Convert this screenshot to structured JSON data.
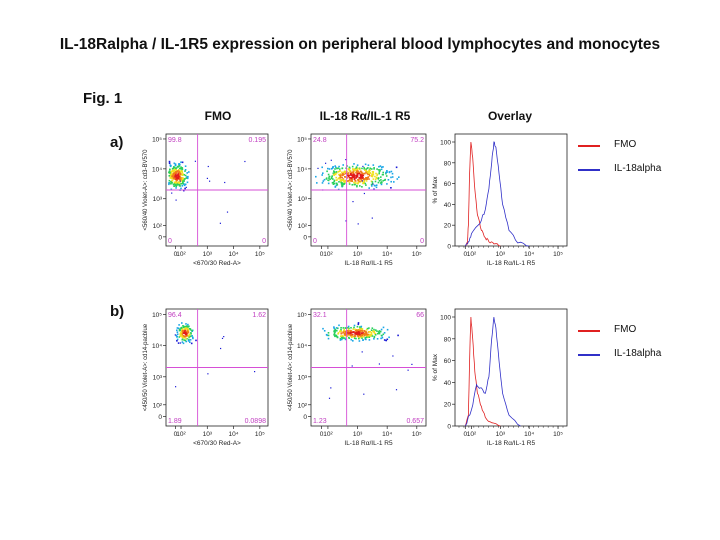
{
  "title": "IL-18Ralpha / IL-1R5 expression on peripheral blood lymphocytes and monocytes",
  "figure_label": "Fig. 1",
  "column_headers": [
    "FMO",
    "IL-18 Rα/IL-1 R5",
    "Overlay"
  ],
  "rows": [
    {
      "label": "a)",
      "dot_ylabel_fmo": "<560/40 Violet-A>: cd3-BV570",
      "dot_ylabel_il18": "<560/40 Violet-A>: cd3-BV570",
      "fmo": {
        "xlabel": "<670/30 Red-A>",
        "q_ul": "99.8",
        "q_ur": "0.195",
        "q_ll": "0",
        "q_lr": "0"
      },
      "il18": {
        "xlabel": "IL-18 Rα/IL-1 R5",
        "q_ul": "24.8",
        "q_ur": "75.2",
        "q_ll": "0",
        "q_lr": "0"
      },
      "hist": {
        "ylabel": "% of Max",
        "xlabel": "IL-18 Rα/IL-1 R5"
      },
      "legend": [
        "FMO",
        "IL-18alpha"
      ]
    },
    {
      "label": "b)",
      "dot_ylabel_fmo": "<450/50 Violet-A>: cd14-pacblue",
      "dot_ylabel_il18": "<450/50 Violet-A>: cd14-pacblue",
      "fmo": {
        "xlabel": "<670/30 Red-A>",
        "q_ul": "96.4",
        "q_ur": "1.62",
        "q_ll": "1.89",
        "q_lr": "0.0898"
      },
      "il18": {
        "xlabel": "IL-18 Rα/IL-1 R5",
        "q_ul": "32.1",
        "q_ur": "66",
        "q_ll": "1.23",
        "q_lr": "0.657"
      },
      "hist": {
        "ylabel": "% of Max",
        "xlabel": "IL-18 Rα/IL-1 R5"
      },
      "legend": [
        "FMO",
        "IL-18alpha"
      ]
    }
  ],
  "axis_ticks": {
    "dot_x": [
      "0",
      "10²",
      "10³",
      "10⁴",
      "10⁵"
    ],
    "dot_y": [
      "0",
      "10²",
      "10³",
      "10⁴",
      "10⁵"
    ],
    "hist_y": [
      "0",
      "20",
      "40",
      "60",
      "80",
      "100"
    ],
    "hist_x": [
      "0",
      "10²",
      "10³",
      "10⁴",
      "10⁵"
    ]
  },
  "colors": {
    "gate": "#d64fd6",
    "quadrant_text": "#c03cc0",
    "fmo": "#e02020",
    "il18": "#3030c8",
    "density_scale": [
      "#1a1ad6",
      "#1aa6e6",
      "#28d05a",
      "#f0e020",
      "#f07a18",
      "#e21b1b"
    ]
  },
  "chart_data": [
    {
      "type": "scatter",
      "panel": "a-FMO",
      "xlim": [
        0,
        100000
      ],
      "ylim": [
        0,
        100000
      ],
      "quadrants": {
        "upper_left": 99.8,
        "upper_right": 0.195,
        "lower_left": 0,
        "lower_right": 0
      },
      "population": {
        "x_center": 0,
        "y_center": 3000
      }
    },
    {
      "type": "scatter",
      "panel": "a-IL18",
      "xlim": [
        0,
        100000
      ],
      "ylim": [
        0,
        100000
      ],
      "quadrants": {
        "upper_left": 24.8,
        "upper_right": 75.2,
        "lower_left": 0,
        "lower_right": 0
      },
      "population": {
        "x_center": 300,
        "y_center": 3000
      }
    },
    {
      "type": "line",
      "panel": "a-Overlay",
      "ylim": [
        0,
        100
      ],
      "series": [
        {
          "name": "FMO",
          "x": [
            0,
            30,
            50,
            70,
            90,
            110,
            130,
            160,
            220,
            300,
            400,
            600,
            1000
          ],
          "y": [
            0,
            2,
            20,
            70,
            100,
            85,
            55,
            30,
            15,
            8,
            4,
            2,
            0
          ]
        },
        {
          "name": "IL-18alpha",
          "x": [
            0,
            50,
            100,
            200,
            300,
            400,
            500,
            600,
            700,
            900,
            1200,
            2000,
            4000,
            10000
          ],
          "y": [
            0,
            4,
            12,
            22,
            35,
            55,
            80,
            100,
            95,
            70,
            40,
            15,
            3,
            0
          ]
        }
      ]
    },
    {
      "type": "scatter",
      "panel": "b-FMO",
      "xlim": [
        0,
        100000
      ],
      "ylim": [
        0,
        100000
      ],
      "quadrants": {
        "upper_left": 96.4,
        "upper_right": 1.62,
        "lower_left": 1.89,
        "lower_right": 0.0898
      },
      "population": {
        "x_center": 0,
        "y_center": 20000
      }
    },
    {
      "type": "scatter",
      "panel": "b-IL18",
      "xlim": [
        0,
        100000
      ],
      "ylim": [
        0,
        100000
      ],
      "quadrants": {
        "upper_left": 32.1,
        "upper_right": 66,
        "lower_left": 1.23,
        "lower_right": 0.657
      },
      "population": {
        "x_center": 400,
        "y_center": 20000
      }
    },
    {
      "type": "line",
      "panel": "b-Overlay",
      "ylim": [
        0,
        100
      ],
      "series": [
        {
          "name": "FMO",
          "x": [
            0,
            50,
            70,
            90,
            110,
            130,
            160,
            220,
            300,
            500,
            1000
          ],
          "y": [
            0,
            10,
            60,
            100,
            80,
            50,
            30,
            18,
            8,
            3,
            0
          ]
        },
        {
          "name": "IL-18alpha",
          "x": [
            0,
            100,
            150,
            200,
            300,
            400,
            500,
            600,
            700,
            900,
            1200,
            2000,
            5000
          ],
          "y": [
            0,
            15,
            38,
            35,
            30,
            45,
            80,
            100,
            90,
            60,
            30,
            10,
            0
          ]
        }
      ]
    }
  ]
}
